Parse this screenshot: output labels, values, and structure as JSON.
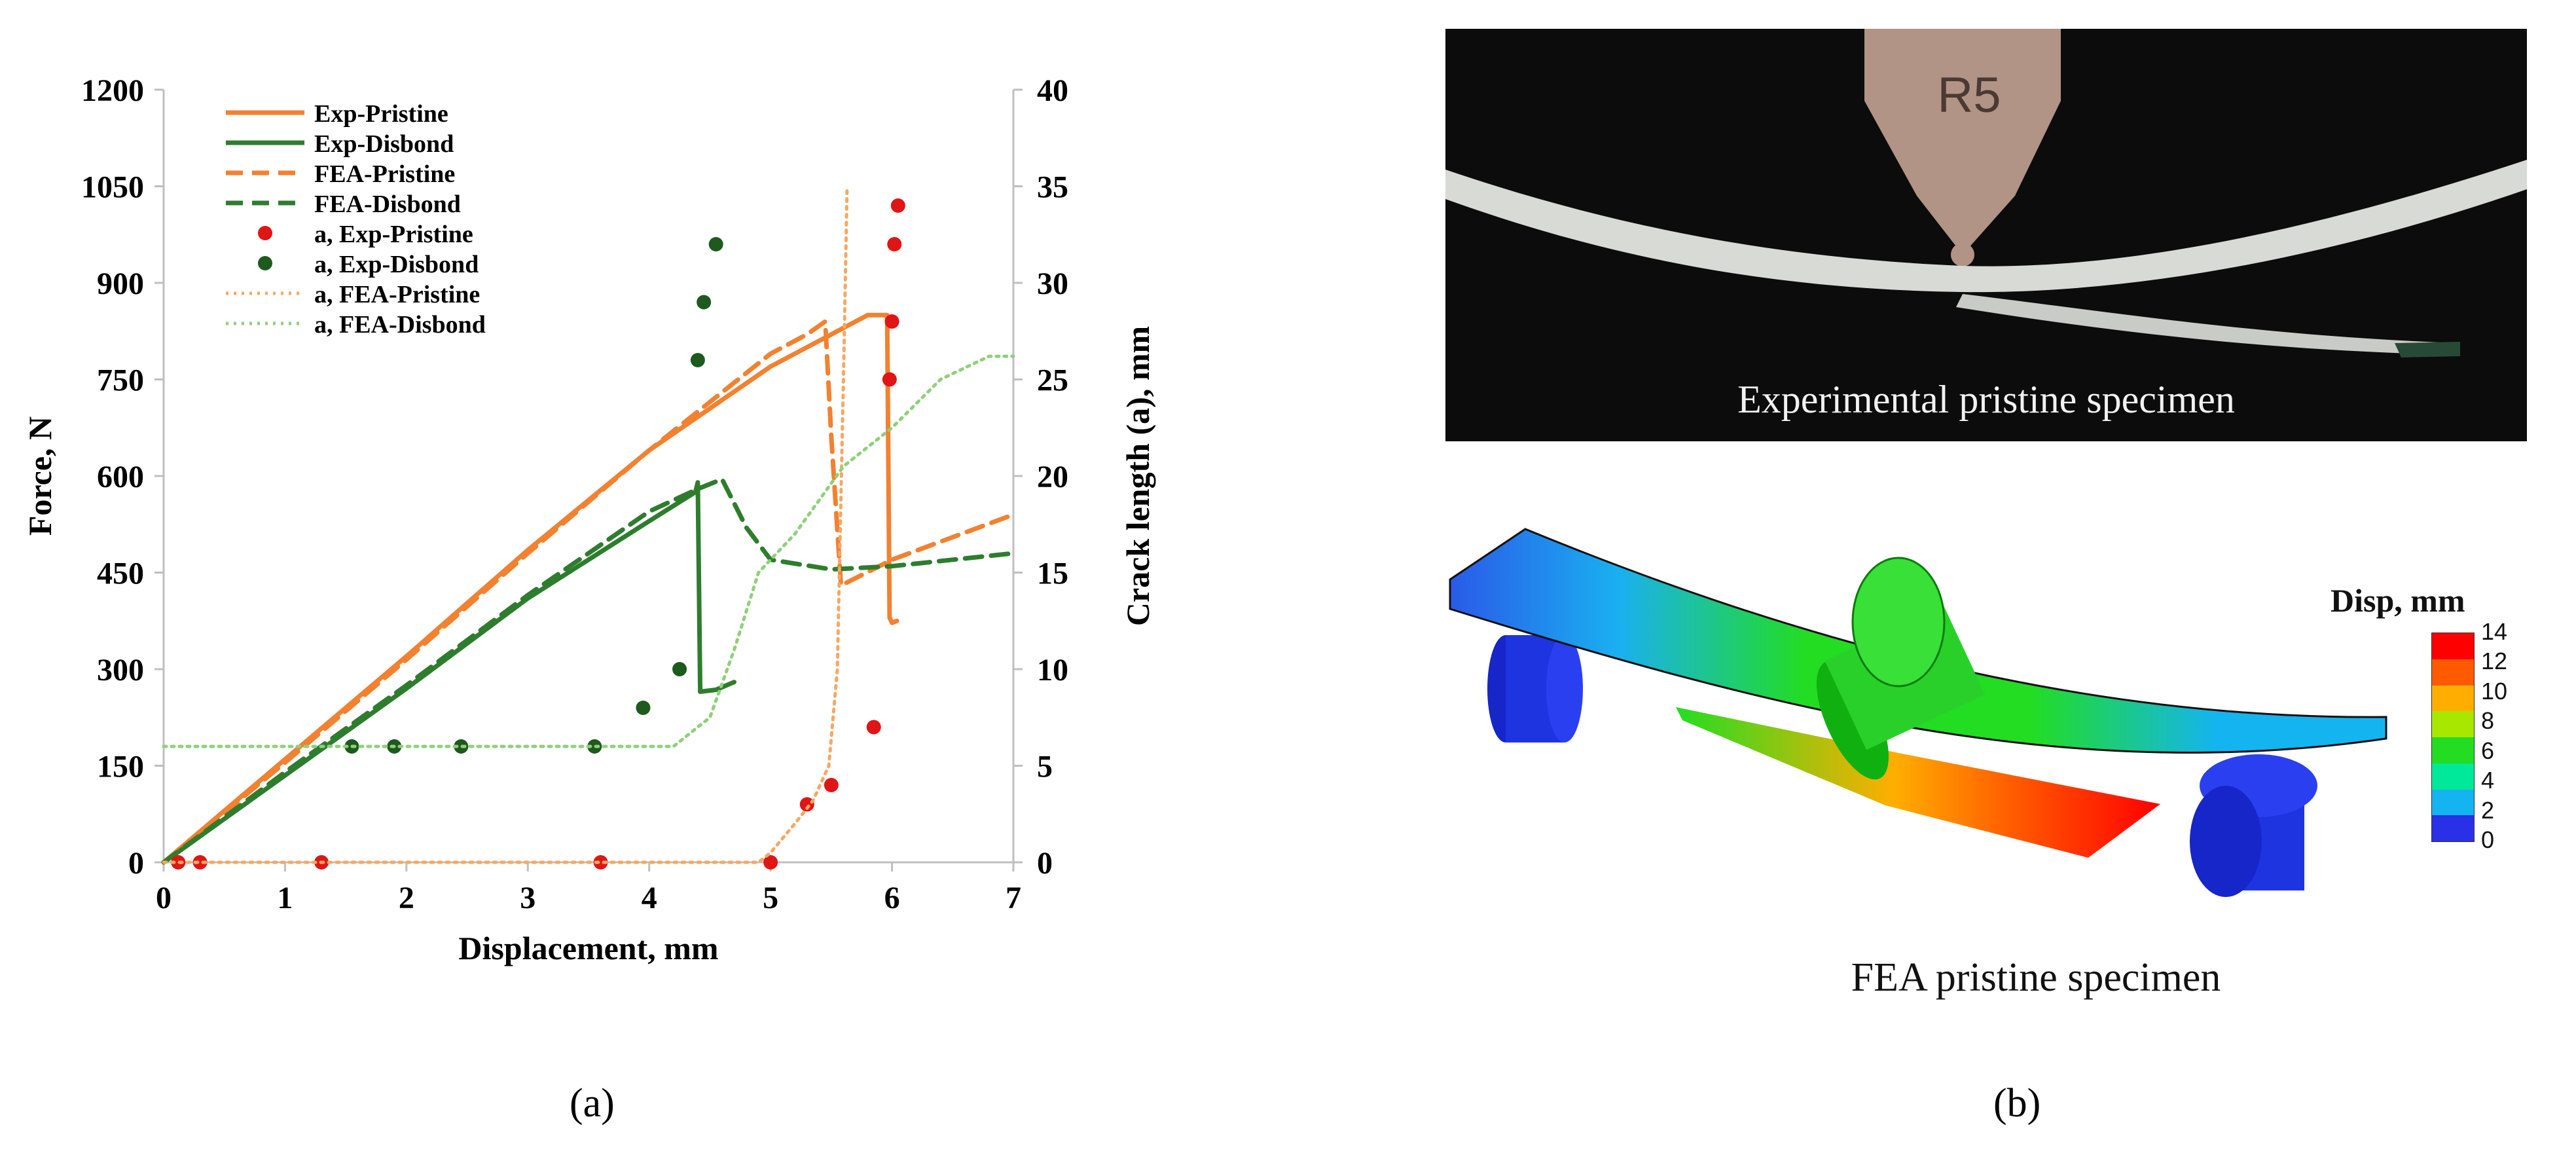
{
  "chart_data": {
    "type": "line",
    "xlabel": "Displacement, mm",
    "ylabel": "Force, N",
    "y2label": "Crack length (a), mm",
    "xlim": [
      0,
      7
    ],
    "ylim": [
      0,
      1200
    ],
    "y2lim": [
      0,
      40
    ],
    "xticks": [
      "0",
      "1",
      "2",
      "3",
      "4",
      "5",
      "6",
      "7"
    ],
    "yticks": [
      "0",
      "150",
      "300",
      "450",
      "600",
      "750",
      "900",
      "1050",
      "1200"
    ],
    "y2ticks": [
      "0",
      "5",
      "10",
      "15",
      "20",
      "25",
      "30",
      "35",
      "40"
    ],
    "grid": "none",
    "legend_position": "top-left",
    "series": [
      {
        "name": "Exp-Pristine",
        "axis": "left",
        "style": "solid",
        "color": "#f28130",
        "x": [
          0,
          1,
          2,
          3,
          4,
          5,
          5.3,
          5.5,
          5.8,
          5.96,
          5.98,
          6.0,
          6.04
        ],
        "y": [
          0,
          160,
          320,
          485,
          640,
          770,
          800,
          820,
          850,
          850,
          380,
          372,
          375
        ]
      },
      {
        "name": "Exp-Disbond",
        "axis": "left",
        "style": "solid",
        "color": "#2e7d2e",
        "x": [
          0,
          1,
          2,
          3,
          4,
          4.38,
          4.4,
          4.42,
          4.55,
          4.7
        ],
        "y": [
          0,
          135,
          270,
          410,
          530,
          575,
          590,
          265,
          268,
          280
        ]
      },
      {
        "name": "FEA-Pristine",
        "axis": "left",
        "style": "dashed",
        "color": "#f28130",
        "x": [
          0,
          1,
          2,
          3,
          4,
          5,
          5.3,
          5.45,
          5.5,
          5.58,
          6,
          7
        ],
        "y": [
          0,
          155,
          315,
          480,
          640,
          790,
          820,
          840,
          660,
          430,
          470,
          540
        ]
      },
      {
        "name": "FEA-Disbond",
        "axis": "left",
        "style": "dashed",
        "color": "#2e7d2e",
        "x": [
          0,
          1,
          2,
          3,
          4,
          4.4,
          4.6,
          4.8,
          5.0,
          5.5,
          6.0,
          7.0
        ],
        "y": [
          0,
          140,
          275,
          415,
          545,
          580,
          595,
          520,
          470,
          455,
          460,
          480
        ]
      },
      {
        "name": "a, Exp-Pristine",
        "axis": "right",
        "style": "markers",
        "color": "#e01515",
        "x": [
          0.12,
          0.3,
          1.3,
          3.6,
          5.0,
          5.3,
          5.5,
          5.85,
          5.98,
          6.0,
          6.02,
          6.05
        ],
        "y": [
          0,
          0,
          0,
          0,
          0,
          3,
          4,
          7,
          25,
          28,
          32,
          34
        ]
      },
      {
        "name": "a, Exp-Disbond",
        "axis": "right",
        "style": "markers",
        "color": "#1e5a1e",
        "x": [
          1.55,
          1.9,
          2.45,
          3.55,
          3.95,
          4.25,
          4.4,
          4.45,
          4.55
        ],
        "y": [
          6,
          6,
          6,
          6,
          8,
          10,
          26,
          29,
          32
        ]
      },
      {
        "name": "a, FEA-Pristine",
        "axis": "right",
        "style": "dotted",
        "color": "#f6a766",
        "x": [
          0,
          4.9,
          5.0,
          5.2,
          5.35,
          5.48,
          5.55,
          5.6,
          5.63
        ],
        "y": [
          0,
          0,
          0.5,
          2,
          3.2,
          5,
          10,
          25,
          35
        ]
      },
      {
        "name": "a, FEA-Disbond",
        "axis": "right",
        "style": "dotted",
        "color": "#8fd07a",
        "x": [
          0,
          4.2,
          4.3,
          4.5,
          4.7,
          4.9,
          5.2,
          5.6,
          6.0,
          6.4,
          6.8,
          7.0
        ],
        "y": [
          6,
          6,
          6.5,
          7.5,
          11,
          15,
          17,
          20.5,
          22.5,
          25,
          26.2,
          26.2
        ]
      }
    ]
  },
  "panel_b": {
    "photo_stamp": "R5",
    "photo_caption": "Experimental pristine specimen",
    "fea_caption": "FEA pristine specimen",
    "legend_title": "Disp, mm",
    "colorbar_labels": [
      "14",
      "12",
      "10",
      "8",
      "6",
      "4",
      "2",
      "0"
    ],
    "colorbar_colors": [
      "#ff0000",
      "#ff5a00",
      "#ffae00",
      "#a8e800",
      "#22dd22",
      "#00e89a",
      "#14b4f0",
      "#2a30e8"
    ]
  },
  "labels": {
    "a": "(a)",
    "b": "(b)"
  }
}
